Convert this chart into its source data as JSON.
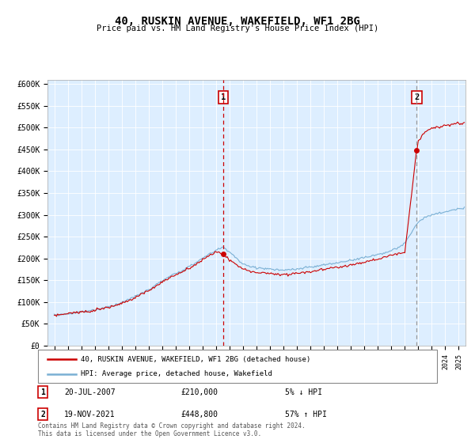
{
  "title": "40, RUSKIN AVENUE, WAKEFIELD, WF1 2BG",
  "subtitle": "Price paid vs. HM Land Registry's House Price Index (HPI)",
  "ylim": [
    0,
    600000
  ],
  "xlim_start": 1994.5,
  "xlim_end": 2025.5,
  "sale1": {
    "date_str": "20-JUL-2007",
    "year": 2007.54,
    "price": 210000,
    "label": "1",
    "note": "5% ↓ HPI"
  },
  "sale2": {
    "date_str": "19-NOV-2021",
    "year": 2021.88,
    "price": 448800,
    "label": "2",
    "note": "57% ↑ HPI"
  },
  "legend_line1": "40, RUSKIN AVENUE, WAKEFIELD, WF1 2BG (detached house)",
  "legend_line2": "HPI: Average price, detached house, Wakefield",
  "footer1": "Contains HM Land Registry data © Crown copyright and database right 2024.",
  "footer2": "This data is licensed under the Open Government Licence v3.0.",
  "line_color_red": "#cc0000",
  "line_color_blue": "#7ab0d4",
  "bg_color": "#ffffff",
  "plot_bg_color": "#ddeeff",
  "grid_color": "#ffffff",
  "annotation_box_color": "#cc0000",
  "sale1_vline_color": "#cc0000",
  "sale2_vline_color": "#999999",
  "ytick_vals": [
    0,
    50000,
    100000,
    150000,
    200000,
    250000,
    300000,
    350000,
    400000,
    450000,
    500000,
    550000,
    600000
  ],
  "ytick_labels": [
    "£0",
    "£50K",
    "£100K",
    "£150K",
    "£200K",
    "£250K",
    "£300K",
    "£350K",
    "£400K",
    "£450K",
    "£500K",
    "£550K",
    "£600K"
  ]
}
